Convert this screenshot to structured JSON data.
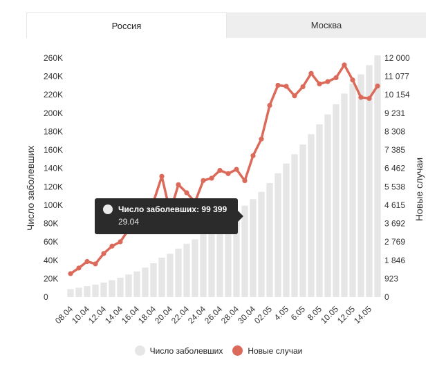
{
  "tabs": [
    {
      "label": "Россия",
      "active": true
    },
    {
      "label": "Москва",
      "active": false
    }
  ],
  "tooltip": {
    "series_label": "Число заболевших: 99 399",
    "date": "29.04"
  },
  "legend": [
    {
      "label": "Число заболевших",
      "color": "#e6e6e6"
    },
    {
      "label": "Новые случаи",
      "color": "#dc6a5a"
    }
  ],
  "chart_data": {
    "type": "bar+line",
    "title": "",
    "ylabel_left": "Число заболевших",
    "ylabel_right": "Новые случаи",
    "yticks_left": [
      "0",
      "20K",
      "40K",
      "60K",
      "80K",
      "100K",
      "120K",
      "140K",
      "160K",
      "180K",
      "200K",
      "220K",
      "240K",
      "260K"
    ],
    "yticks_right": [
      "0",
      "923",
      "1 846",
      "2 769",
      "3 692",
      "4 615",
      "5 538",
      "6 462",
      "7 385",
      "8 308",
      "9 231",
      "10 154",
      "11 077",
      "12 000"
    ],
    "ylim_left": [
      0,
      260000
    ],
    "ylim_right": [
      0,
      12000
    ],
    "x_tick_labels": [
      "08.04",
      "10.04",
      "12.04",
      "14.04",
      "16.04",
      "18.04",
      "20.04",
      "22.04",
      "24.04",
      "26.04",
      "28.04",
      "30.04",
      "02.05",
      "4.05",
      "6.05",
      "8.05",
      "10.05",
      "12.05",
      "14.05"
    ],
    "dates": [
      "08.04",
      "09.04",
      "10.04",
      "11.04",
      "12.04",
      "13.04",
      "14.04",
      "15.04",
      "16.04",
      "17.04",
      "18.04",
      "19.04",
      "20.04",
      "21.04",
      "22.04",
      "23.04",
      "24.04",
      "25.04",
      "26.04",
      "27.04",
      "28.04",
      "29.04",
      "30.04",
      "01.05",
      "02.05",
      "03.05",
      "04.05",
      "05.05",
      "06.05",
      "07.05",
      "08.05",
      "09.05",
      "10.05",
      "11.05",
      "12.05",
      "13.05",
      "14.05",
      "15.05"
    ],
    "series": [
      {
        "name": "Число заболевших",
        "type": "bar",
        "axis": "left",
        "color": "#e6e6e6",
        "values": [
          8672,
          10131,
          11917,
          13584,
          15770,
          18328,
          21102,
          24490,
          27938,
          32008,
          36793,
          42853,
          47121,
          52763,
          57999,
          62773,
          68622,
          74588,
          80949,
          87147,
          93558,
          99399,
          106498,
          114431,
          124054,
          134686,
          145268,
          155370,
          165929,
          177160,
          187859,
          198676,
          209688,
          221344,
          232243,
          242271,
          252245,
          262843
        ]
      },
      {
        "name": "Новые случаи",
        "type": "line",
        "axis": "right",
        "color": "#dc6a5a",
        "values": [
          1175,
          1459,
          1786,
          1667,
          2186,
          2558,
          2774,
          3388,
          3448,
          4070,
          4785,
          6060,
          4268,
          5642,
          5236,
          4774,
          5849,
          5966,
          6361,
          6198,
          6411,
          5841,
          7099,
          7933,
          9623,
          10633,
          10581,
          10102,
          10559,
          11231,
          10699,
          10817,
          11012,
          11656,
          10899,
          10028,
          9974,
          10598
        ]
      }
    ],
    "grid": false,
    "legend_position": "bottom"
  }
}
